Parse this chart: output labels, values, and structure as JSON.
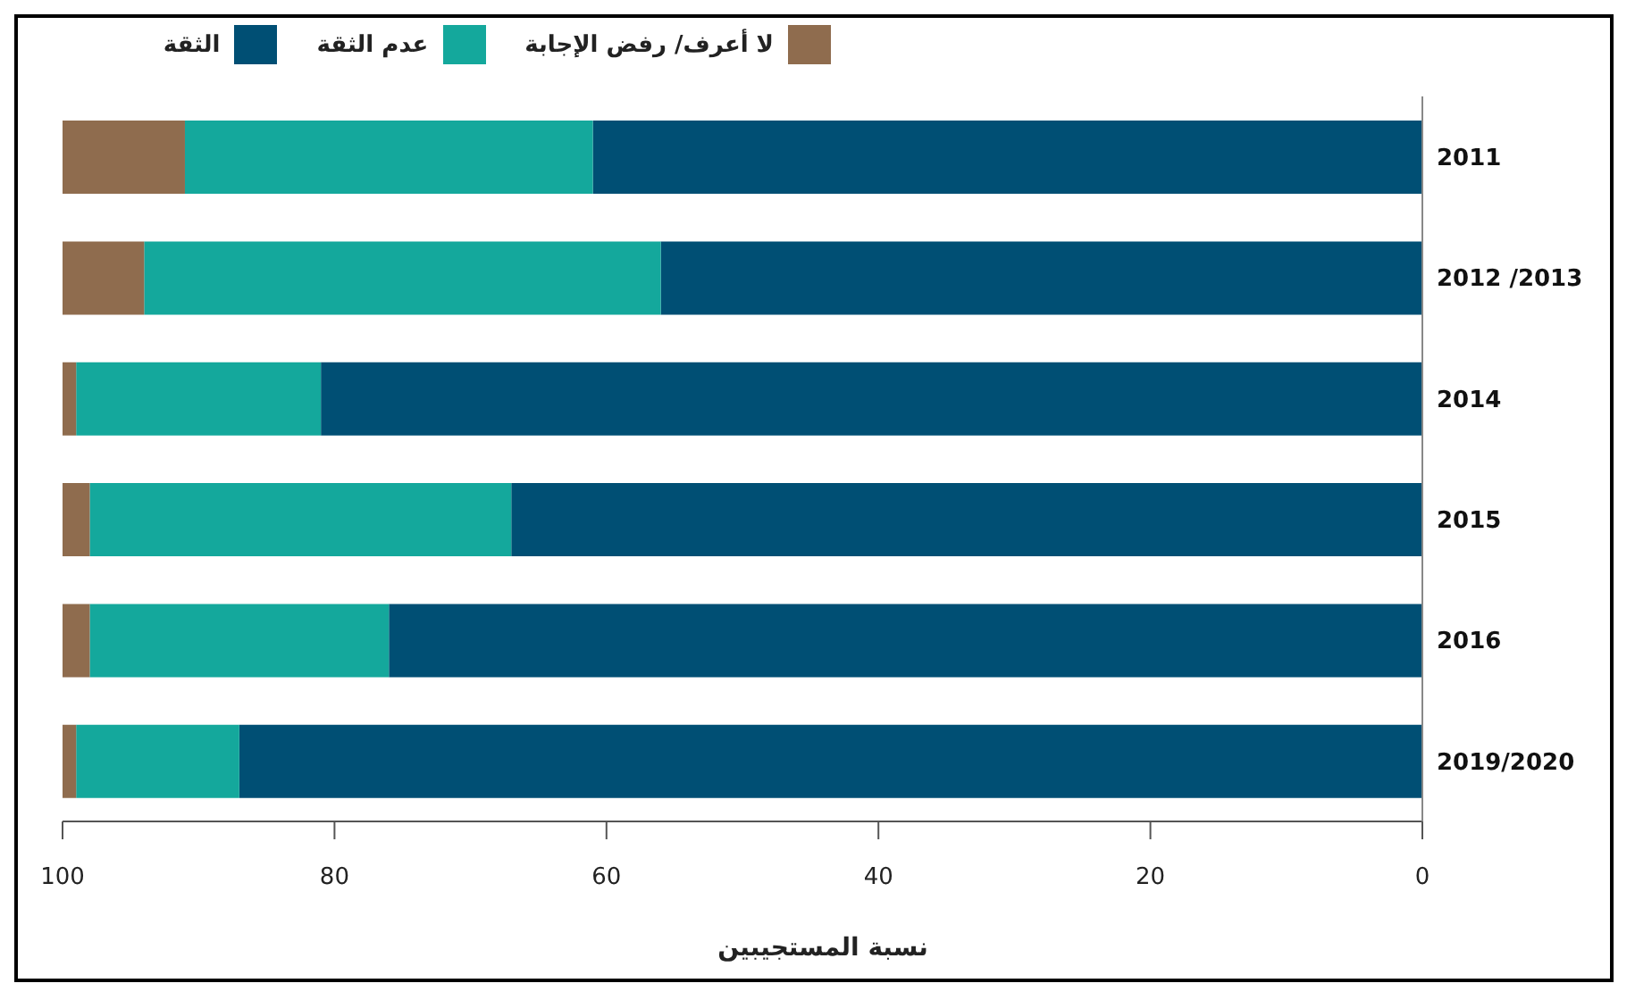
{
  "chart_data": {
    "type": "bar",
    "orientation": "horizontal",
    "stacked": true,
    "xlabel": "نسبة المستجيبين",
    "categories": [
      "2011",
      "2012 /2013",
      "2014",
      "2015",
      "2016",
      "2019/2020"
    ],
    "series": [
      {
        "name": "الثقة",
        "color": "#004f74",
        "values": [
          61,
          56,
          81,
          67,
          76,
          87
        ]
      },
      {
        "name": "عدم الثقة",
        "color": "#14a89c",
        "values": [
          30,
          38,
          18,
          31,
          22,
          12
        ]
      },
      {
        "name": "لا أعرف/ رفض الإجابة",
        "color": "#8f6c4e",
        "values": [
          9,
          6,
          1,
          2,
          2,
          1
        ]
      }
    ],
    "xlim": [
      100,
      0
    ],
    "xticks": [
      100,
      80,
      60,
      40,
      20,
      0
    ],
    "grid": false,
    "legend": "top"
  }
}
